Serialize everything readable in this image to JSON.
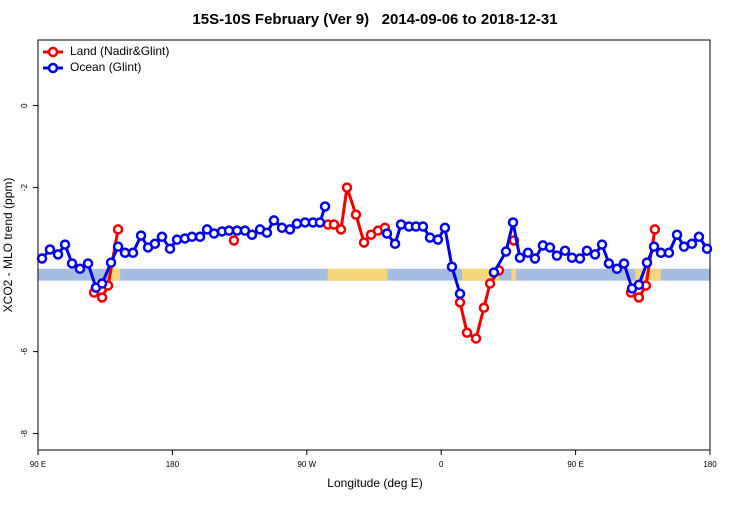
{
  "chart_data": {
    "type": "line",
    "title": "15S-10S February (Ver 9)   2014-09-06 to 2018-12-31",
    "x_label": "Longitude (deg E)",
    "y_label": "XCO2 - MLO trend (ppm)",
    "xlim": [
      90,
      540
    ],
    "ylim": [
      -8.4,
      1.6
    ],
    "xticks": [
      {
        "value": 90,
        "label": "90 E"
      },
      {
        "value": 180,
        "label": "180"
      },
      {
        "value": 270,
        "label": "90 W"
      },
      {
        "value": 360,
        "label": "0"
      },
      {
        "value": 450,
        "label": "90 E"
      },
      {
        "value": 540,
        "label": "180"
      }
    ],
    "yticks": [
      0,
      -2,
      -6,
      -8
    ],
    "legend": "topleft",
    "strip": {
      "ylim": [
        -4.27,
        -3.98
      ],
      "color": "#a5bde0",
      "highlight_color": "#f8d77a",
      "highlights": [
        [
          138,
          145
        ],
        [
          284,
          324
        ],
        [
          374,
          399
        ],
        [
          407,
          410
        ],
        [
          490,
          507
        ]
      ]
    },
    "series": [
      {
        "name": "Land (Nadir&Glint)",
        "color": "#ee0000",
        "x": [
          127.5,
          132.9,
          136.9,
          143.6,
          null,
          221.2,
          null,
          284.2,
          288.2,
          292.9,
          296.9,
          302.9,
          308.3,
          313.0,
          317.7,
          322.3,
          null,
          372.6,
          377.3,
          383.3,
          388.6,
          392.7,
          398.7,
          null,
          408.7,
          null,
          487.1,
          492.4,
          497.1,
          503.1
        ],
        "values": [
          -4.56,
          -4.68,
          -4.39,
          -3.02,
          null,
          -3.29,
          null,
          -2.9,
          -2.9,
          -3.02,
          -2.0,
          -2.66,
          -3.34,
          -3.15,
          -3.05,
          -2.98,
          null,
          -4.8,
          -5.54,
          -5.68,
          -4.93,
          -4.34,
          -4.02,
          null,
          -3.29,
          null,
          -4.56,
          -4.68,
          -4.39,
          -3.02
        ]
      },
      {
        "name": "Ocean (Glint)",
        "color": "#0000ee",
        "x": [
          92.7,
          98.0,
          103.4,
          108.1,
          112.8,
          118.1,
          123.5,
          128.8,
          132.9,
          138.9,
          143.6,
          148.3,
          153.6,
          159.0,
          163.7,
          168.3,
          173.0,
          178.4,
          183.1,
          188.4,
          193.1,
          198.5,
          203.2,
          207.9,
          213.2,
          217.9,
          223.3,
          228.6,
          233.3,
          238.7,
          243.3,
          248.0,
          253.4,
          258.7,
          263.4,
          268.8,
          274.1,
          278.8,
          282.2,
          null,
          323.7,
          329.1,
          333.1,
          338.4,
          343.1,
          347.8,
          352.5,
          357.8,
          362.5,
          367.2,
          372.6,
          null,
          395.3,
          403.4,
          408.1,
          412.7,
          418.1,
          422.8,
          428.1,
          432.8,
          437.5,
          442.9,
          447.6,
          452.9,
          457.6,
          463.0,
          467.7,
          472.3,
          477.7,
          482.4,
          487.8,
          492.4,
          497.8,
          502.5,
          507.2,
          512.5,
          517.9,
          522.6,
          527.9,
          532.6,
          538.0
        ],
        "values": [
          -3.73,
          -3.51,
          -3.63,
          -3.39,
          -3.85,
          -3.98,
          -3.85,
          -4.44,
          -4.34,
          -3.83,
          -3.44,
          -3.59,
          -3.59,
          -3.17,
          -3.46,
          -3.37,
          -3.2,
          -3.49,
          -3.27,
          -3.24,
          -3.2,
          -3.2,
          -3.02,
          -3.12,
          -3.07,
          -3.05,
          -3.05,
          -3.05,
          -3.15,
          -3.02,
          -3.1,
          -2.8,
          -2.98,
          -3.02,
          -2.88,
          -2.85,
          -2.85,
          -2.85,
          -2.46,
          null,
          -3.12,
          -3.37,
          -2.9,
          -2.95,
          -2.95,
          -2.95,
          -3.22,
          -3.27,
          -2.98,
          -3.93,
          -4.59,
          null,
          -4.07,
          -3.56,
          -2.85,
          -3.71,
          -3.59,
          -3.73,
          -3.41,
          -3.46,
          -3.66,
          -3.54,
          -3.71,
          -3.73,
          -3.54,
          -3.63,
          -3.39,
          -3.85,
          -3.98,
          -3.85,
          -4.46,
          -4.37,
          -3.83,
          -3.44,
          -3.59,
          -3.59,
          -3.15,
          -3.44,
          -3.37,
          -3.2,
          -3.49
        ]
      }
    ]
  }
}
